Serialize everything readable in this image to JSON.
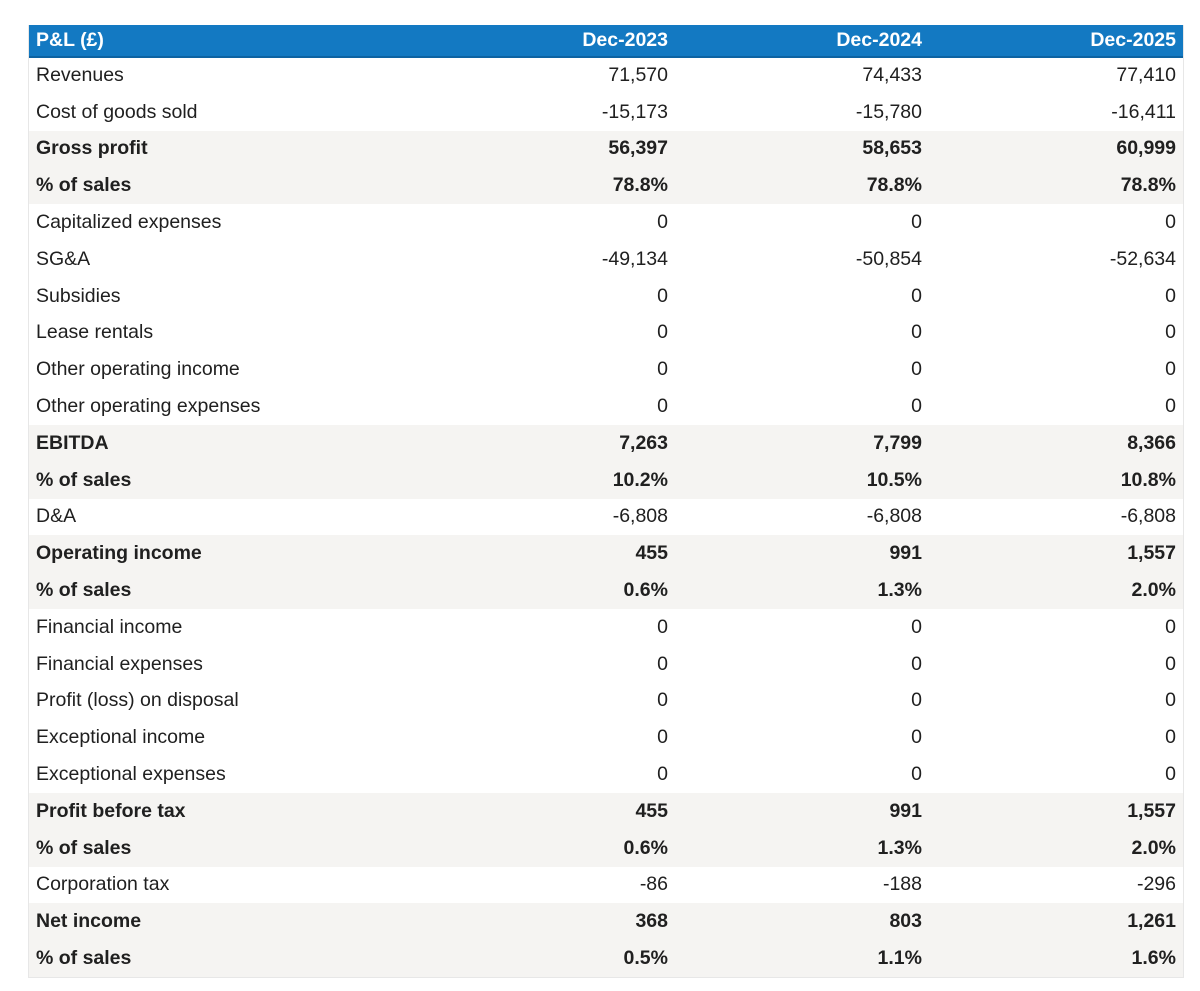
{
  "colors": {
    "header_bg": "#1379c2",
    "header_border": "#0d63a2",
    "subtotal_bg": "#f5f4f2",
    "text": "#202020"
  },
  "table": {
    "header": {
      "label": "P&L (£)",
      "columns": [
        "Dec-2023",
        "Dec-2024",
        "Dec-2025"
      ]
    },
    "rows": [
      {
        "label": "Revenues",
        "values": [
          "71,570",
          "74,433",
          "77,410"
        ],
        "bold": false
      },
      {
        "label": "Cost of goods sold",
        "values": [
          "-15,173",
          "-15,780",
          "-16,411"
        ],
        "bold": false
      },
      {
        "label": "Gross profit",
        "values": [
          "56,397",
          "58,653",
          "60,999"
        ],
        "bold": true
      },
      {
        "label": "% of sales",
        "values": [
          "78.8%",
          "78.8%",
          "78.8%"
        ],
        "bold": true
      },
      {
        "label": "Capitalized expenses",
        "values": [
          "0",
          "0",
          "0"
        ],
        "bold": false
      },
      {
        "label": "SG&A",
        "values": [
          "-49,134",
          "-50,854",
          "-52,634"
        ],
        "bold": false
      },
      {
        "label": "Subsidies",
        "values": [
          "0",
          "0",
          "0"
        ],
        "bold": false
      },
      {
        "label": "Lease rentals",
        "values": [
          "0",
          "0",
          "0"
        ],
        "bold": false
      },
      {
        "label": "Other operating income",
        "values": [
          "0",
          "0",
          "0"
        ],
        "bold": false
      },
      {
        "label": "Other operating expenses",
        "values": [
          "0",
          "0",
          "0"
        ],
        "bold": false
      },
      {
        "label": "EBITDA",
        "values": [
          "7,263",
          "7,799",
          "8,366"
        ],
        "bold": true
      },
      {
        "label": "% of sales",
        "values": [
          "10.2%",
          "10.5%",
          "10.8%"
        ],
        "bold": true
      },
      {
        "label": "D&A",
        "values": [
          "-6,808",
          "-6,808",
          "-6,808"
        ],
        "bold": false
      },
      {
        "label": "Operating income",
        "values": [
          "455",
          "991",
          "1,557"
        ],
        "bold": true
      },
      {
        "label": "% of sales",
        "values": [
          "0.6%",
          "1.3%",
          "2.0%"
        ],
        "bold": true
      },
      {
        "label": "Financial income",
        "values": [
          "0",
          "0",
          "0"
        ],
        "bold": false
      },
      {
        "label": "Financial expenses",
        "values": [
          "0",
          "0",
          "0"
        ],
        "bold": false
      },
      {
        "label": "Profit (loss) on disposal",
        "values": [
          "0",
          "0",
          "0"
        ],
        "bold": false
      },
      {
        "label": "Exceptional income",
        "values": [
          "0",
          "0",
          "0"
        ],
        "bold": false
      },
      {
        "label": "Exceptional expenses",
        "values": [
          "0",
          "0",
          "0"
        ],
        "bold": false
      },
      {
        "label": "Profit before tax",
        "values": [
          "455",
          "991",
          "1,557"
        ],
        "bold": true
      },
      {
        "label": "% of sales",
        "values": [
          "0.6%",
          "1.3%",
          "2.0%"
        ],
        "bold": true
      },
      {
        "label": "Corporation tax",
        "values": [
          "-86",
          "-188",
          "-296"
        ],
        "bold": false
      },
      {
        "label": "Net income",
        "values": [
          "368",
          "803",
          "1,261"
        ],
        "bold": true
      },
      {
        "label": "% of sales",
        "values": [
          "0.5%",
          "1.1%",
          "1.6%"
        ],
        "bold": true
      }
    ]
  }
}
